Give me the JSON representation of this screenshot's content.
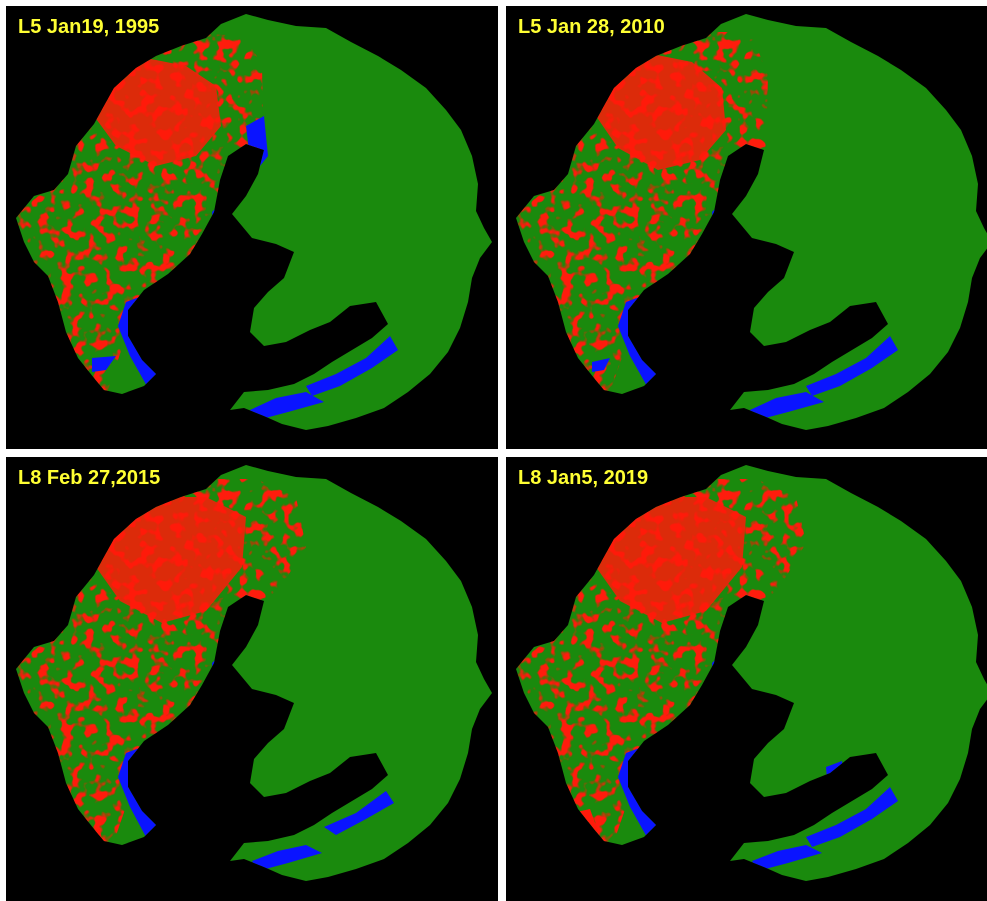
{
  "panels": [
    {
      "label": "L5 Jan19, 1995"
    },
    {
      "label": "L5 Jan 28, 2010"
    },
    {
      "label": "L8 Feb 27,2015"
    },
    {
      "label": "L8 Jan5, 2019"
    }
  ],
  "colors": {
    "background": "#000000",
    "vegetation": "#1a8a0d",
    "built_up": "#ff1a0a",
    "water": "#0a14ff",
    "label": "#ffff33",
    "divider": "#ffffff"
  },
  "map_features": [
    "vegetation-area",
    "built-up-area",
    "water-area",
    "non-study-background"
  ]
}
